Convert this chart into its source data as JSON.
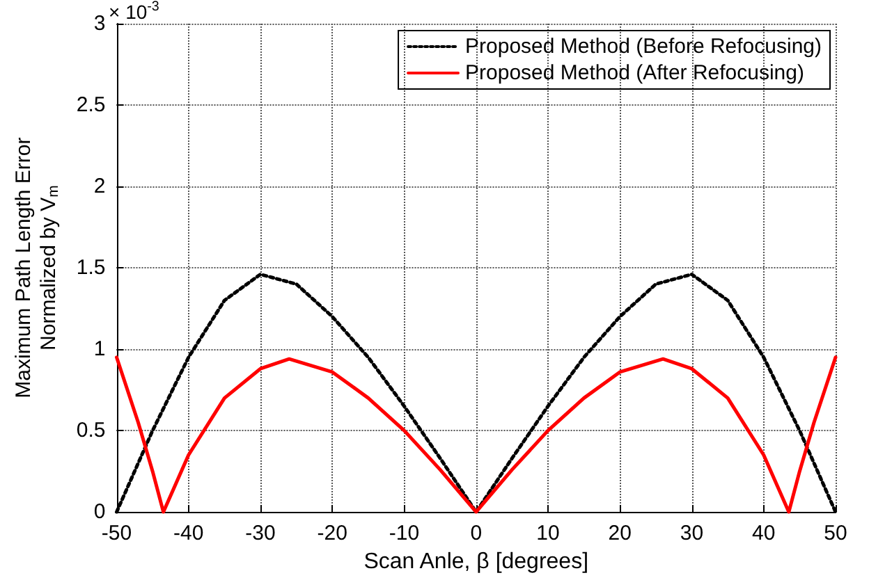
{
  "chart_data": {
    "type": "line",
    "xlabel": "Scan Anle, β [degrees]",
    "ylabel": "Maximum Path Length Error\nNormalized by V$_{m}$",
    "annotations": [
      "× 10$^{-3}$"
    ],
    "xlim": [
      -50,
      50
    ],
    "xticks": [
      -50,
      -40,
      -30,
      -20,
      -10,
      0,
      10,
      20,
      30,
      40,
      50
    ],
    "ylim": [
      0,
      3
    ],
    "yticks": [
      0,
      0.5,
      1,
      1.5,
      2,
      2.5,
      3
    ],
    "grid": true,
    "legend": "top right",
    "marker": "none",
    "series": [
      {
        "name": "Proposed Method (Before Refocusing)",
        "color": "#000000",
        "line_style": "dotted",
        "x": [
          -50,
          -45,
          -40,
          -35,
          -30,
          -25,
          -20,
          -15,
          -10,
          -5,
          0,
          5,
          10,
          15,
          20,
          25,
          30,
          35,
          40,
          45,
          50
        ],
        "values": [
          0,
          0.5,
          0.95,
          1.3,
          1.46,
          1.4,
          1.2,
          0.95,
          0.65,
          0.33,
          0,
          0.33,
          0.65,
          0.95,
          1.2,
          1.4,
          1.46,
          1.3,
          0.95,
          0.5,
          0
        ]
      },
      {
        "name": "Proposed Method (After Refocusing)",
        "color": "#ff0000",
        "line_style": "solid",
        "x": [
          -50,
          -47,
          -45,
          -43.5,
          -40,
          -35,
          -30,
          -26,
          -20,
          -15,
          -10,
          -5,
          0,
          5,
          10,
          15,
          20,
          26,
          30,
          35,
          40,
          43.5,
          45,
          47,
          50
        ],
        "values": [
          0.95,
          0.55,
          0.25,
          0,
          0.35,
          0.7,
          0.88,
          0.94,
          0.86,
          0.7,
          0.5,
          0.26,
          0,
          0.26,
          0.5,
          0.7,
          0.86,
          0.94,
          0.88,
          0.7,
          0.35,
          0,
          0.25,
          0.55,
          0.95
        ]
      }
    ]
  }
}
